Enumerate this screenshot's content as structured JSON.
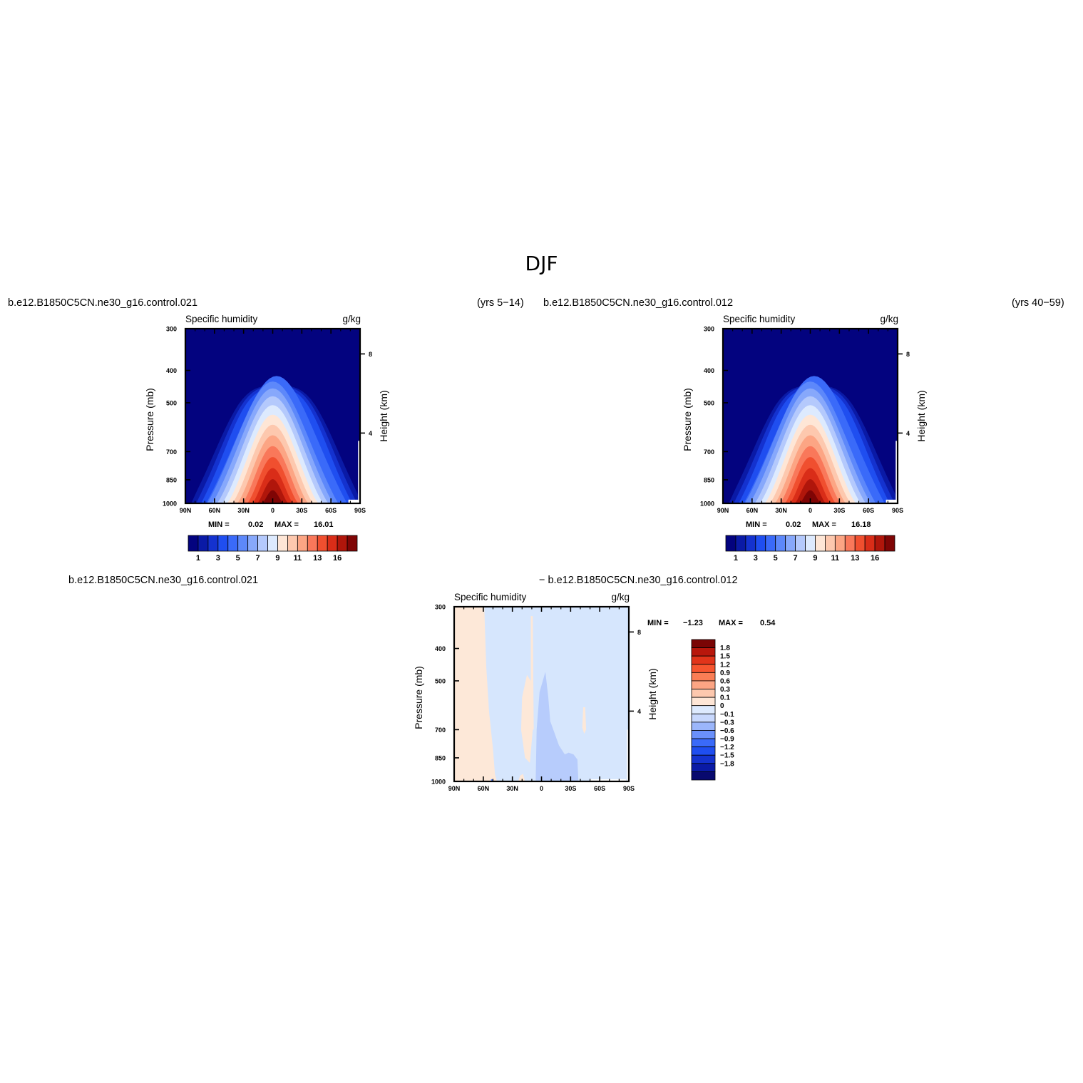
{
  "page": {
    "title": "DJF"
  },
  "captions": {
    "top_left_case": "b.e12.B1850C5CN.ne30_g16.control.021",
    "top_left_years": "(yrs 5−14)",
    "top_right_case": "b.e12.B1850C5CN.ne30_g16.control.012",
    "top_right_years": "(yrs 40−59)",
    "bottom_left_case": "b.e12.B1850C5CN.ne30_g16.control.021",
    "bottom_right_case": "− b.e12.B1850C5CN.ne30_g16.control.012"
  },
  "colors": {
    "abs_scale": [
      "#03037f",
      "#0a1aa6",
      "#1432cf",
      "#1f4ef0",
      "#3a6af9",
      "#5d88fa",
      "#87a8fb",
      "#b4c9fc",
      "#ddeafe",
      "#fee6d6",
      "#fdc8ae",
      "#fca584",
      "#f9785a",
      "#f04f2f",
      "#d92d18",
      "#b0160b",
      "#7f0505"
    ],
    "diff_scale": [
      "#08096e",
      "#0a1aa6",
      "#1432cf",
      "#1f4ef0",
      "#3a6af9",
      "#6a90fa",
      "#9bb6fb",
      "#c8d8fd",
      "#ddeafe",
      "#fee6d6",
      "#fdc8ae",
      "#fca584",
      "#fa7e55",
      "#f6552f",
      "#e1341a",
      "#b8170c",
      "#7a0505"
    ]
  },
  "chart_data": [
    {
      "type": "heatmap",
      "title": "Specific humidity",
      "units": "g/kg",
      "ylabel": "Pressure (mb)",
      "ylabel_right": "Height (km)",
      "x_ticks": [
        "90N",
        "60N",
        "30N",
        "0",
        "30S",
        "60S",
        "90S"
      ],
      "y_ticks": [
        "300",
        "400",
        "500",
        "700",
        "850",
        "1000"
      ],
      "y_right_ticks": [
        "8",
        "4"
      ],
      "stats": {
        "min_label": "MIN =",
        "min": "0.02",
        "max_label": "MAX =",
        "max": "16.01"
      },
      "colorbar_labels": [
        "1",
        "3",
        "5",
        "7",
        "9",
        "11",
        "13",
        "16"
      ],
      "contour_levels": [
        1,
        2,
        3,
        4,
        5,
        6,
        7,
        8,
        9,
        10,
        11,
        12,
        13,
        14,
        15,
        16
      ],
      "peak": {
        "lat": 0,
        "pressure": 1000,
        "value": 16.01
      }
    },
    {
      "type": "heatmap",
      "title": "Specific humidity",
      "units": "g/kg",
      "ylabel": "Pressure (mb)",
      "ylabel_right": "Height (km)",
      "x_ticks": [
        "90N",
        "60N",
        "30N",
        "0",
        "30S",
        "60S",
        "90S"
      ],
      "y_ticks": [
        "300",
        "400",
        "500",
        "700",
        "850",
        "1000"
      ],
      "y_right_ticks": [
        "8",
        "4"
      ],
      "stats": {
        "min_label": "MIN =",
        "min": "0.02",
        "max_label": "MAX =",
        "max": "16.18"
      },
      "colorbar_labels": [
        "1",
        "3",
        "5",
        "7",
        "9",
        "11",
        "13",
        "16"
      ],
      "contour_levels": [
        1,
        2,
        3,
        4,
        5,
        6,
        7,
        8,
        9,
        10,
        11,
        12,
        13,
        14,
        15,
        16
      ],
      "peak": {
        "lat": 0,
        "pressure": 1000,
        "value": 16.18
      }
    },
    {
      "type": "heatmap",
      "title": "Specific humidity",
      "units": "g/kg",
      "ylabel": "Pressure (mb)",
      "ylabel_right": "Height (km)",
      "x_ticks": [
        "90N",
        "60N",
        "30N",
        "0",
        "30S",
        "60S",
        "90S"
      ],
      "y_ticks": [
        "300",
        "400",
        "500",
        "700",
        "850",
        "1000"
      ],
      "y_right_ticks": [
        "8",
        "4"
      ],
      "stats": {
        "min_label": "MIN =",
        "min": "−1.23",
        "max_label": "MAX =",
        "max": "0.54"
      },
      "colorbar_labels": [
        "1.8",
        "1.5",
        "1.2",
        "0.9",
        "0.6",
        "0.3",
        "0.1",
        "0",
        "−0.1",
        "−0.3",
        "−0.6",
        "−0.9",
        "−1.2",
        "−1.5",
        "−1.8"
      ]
    }
  ]
}
